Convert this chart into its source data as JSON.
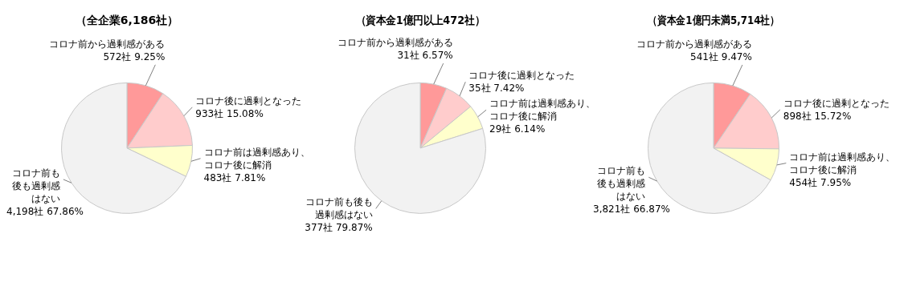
{
  "chart_data": [
    {
      "type": "pie",
      "title": "（全企業6,186社）",
      "categories": [
        "コロナ前から過剰感がある",
        "コロナ後に過剰となった",
        "コロナ前は過剰感あり、コロナ後に解消",
        "コロナ前も後も過剰感はない"
      ],
      "values": [
        572,
        933,
        483,
        4198
      ],
      "value_labels": [
        "572社  9.25%",
        "933社  15.08%",
        "483社  7.81%",
        "4,198社  67.86%"
      ],
      "colors": [
        "#ff9999",
        "#ffcccc",
        "#ffffcc",
        "#f2f2f2"
      ]
    },
    {
      "type": "pie",
      "title": "（資本金1億円以上472社）",
      "categories": [
        "コロナ前から過剰感がある",
        "コロナ後に過剰となった",
        "コロナ前は過剰感あり、コロナ後に解消",
        "コロナ前も後も過剰感はない"
      ],
      "values": [
        31,
        35,
        29,
        377
      ],
      "value_labels": [
        "31社  6.57%",
        "35社  7.42%",
        "29社  6.14%",
        "377社  79.87%"
      ],
      "colors": [
        "#ff9999",
        "#ffcccc",
        "#ffffcc",
        "#f2f2f2"
      ]
    },
    {
      "type": "pie",
      "title": "（資本金1億円未満5,714社）",
      "categories": [
        "コロナ前から過剰感がある",
        "コロナ後に過剰となった",
        "コロナ前は過剰感あり、コロナ後に解消",
        "コロナ前も後も過剰感はない"
      ],
      "values": [
        541,
        898,
        454,
        3821
      ],
      "value_labels": [
        "541社  9.47%",
        "898社  15.72%",
        "454社  7.95%",
        "3,821社  66.87%"
      ],
      "colors": [
        "#ff9999",
        "#ffcccc",
        "#ffffcc",
        "#f2f2f2"
      ]
    }
  ]
}
